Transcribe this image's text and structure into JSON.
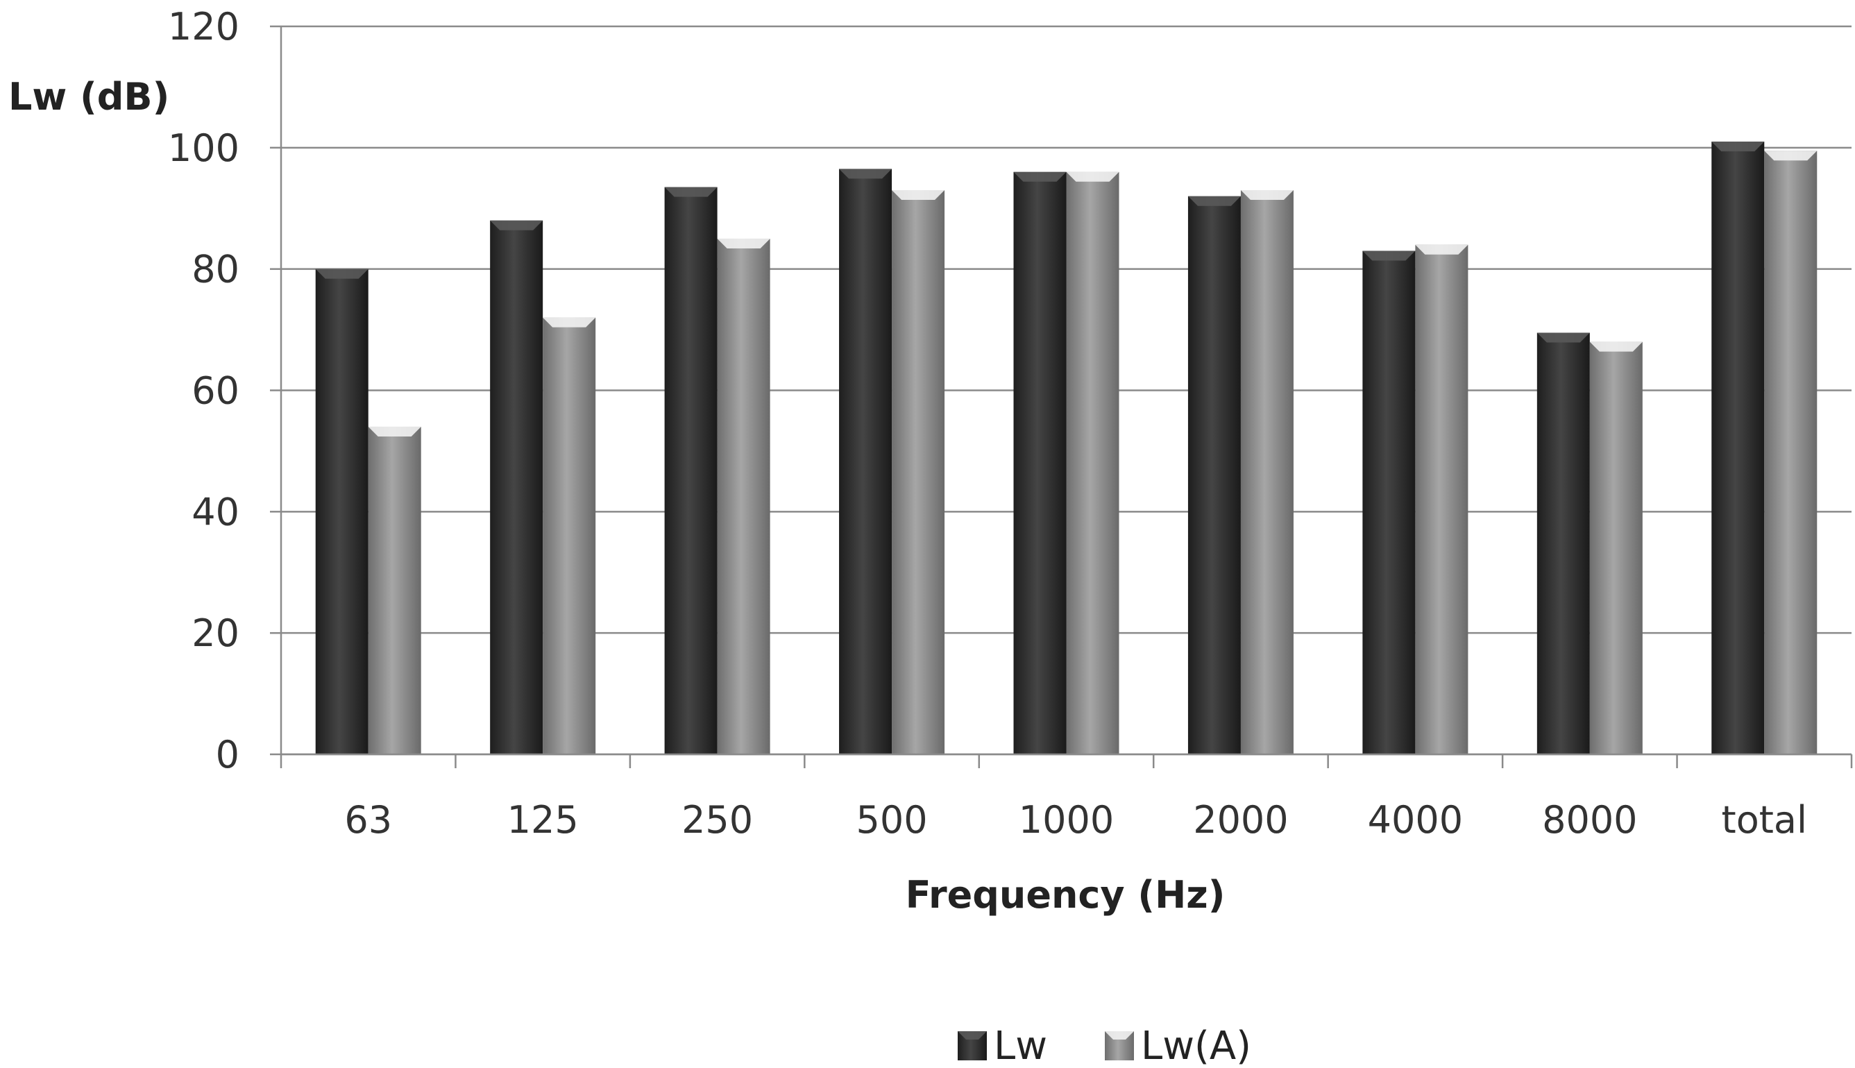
{
  "chart_data": {
    "type": "bar",
    "title": "",
    "ylabel": "Lw (dB)",
    "xlabel": "Frequency (Hz)",
    "categories": [
      "63",
      "125",
      "250",
      "500",
      "1000",
      "2000",
      "4000",
      "8000",
      "total"
    ],
    "series": [
      {
        "name": "Lw",
        "color": "#3a3a3a",
        "values": [
          80,
          88,
          93.5,
          96.5,
          96,
          92,
          83,
          69.5,
          101
        ]
      },
      {
        "name": "Lw(A)",
        "color": "#8c8c8c",
        "values": [
          54,
          72,
          85,
          93,
          96,
          93,
          84,
          68,
          99.5
        ]
      }
    ],
    "ylim": [
      0,
      120
    ],
    "yticks": [
      0,
      20,
      40,
      60,
      80,
      100,
      120
    ],
    "grid": true,
    "legend": "bottom-center"
  }
}
